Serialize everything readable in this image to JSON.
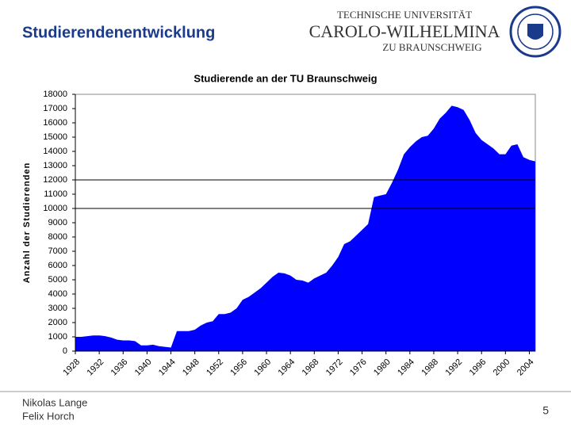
{
  "header": {
    "title": "Studierendenentwicklung",
    "logo": [
      "TECHNISCHE UNIVERSITÄT",
      "CAROLO-WILHELMINA",
      "ZU BRAUNSCHWEIG"
    ]
  },
  "chart_data": {
    "type": "area",
    "title": "Studierende an der TU Braunschweig",
    "y_label": "Anzahl der Studierenden",
    "color": "#0000ff",
    "x": [
      1928,
      1929,
      1930,
      1931,
      1932,
      1933,
      1934,
      1935,
      1936,
      1937,
      1938,
      1939,
      1940,
      1941,
      1942,
      1943,
      1944,
      1945,
      1946,
      1947,
      1948,
      1949,
      1950,
      1951,
      1952,
      1953,
      1954,
      1955,
      1956,
      1957,
      1958,
      1959,
      1960,
      1961,
      1962,
      1963,
      1964,
      1965,
      1966,
      1967,
      1968,
      1969,
      1970,
      1971,
      1972,
      1973,
      1974,
      1975,
      1976,
      1977,
      1978,
      1979,
      1980,
      1981,
      1982,
      1983,
      1984,
      1985,
      1986,
      1987,
      1988,
      1989,
      1990,
      1991,
      1992,
      1993,
      1994,
      1995,
      1996,
      1997,
      1998,
      1999,
      2000,
      2001,
      2002,
      2003,
      2004,
      2005
    ],
    "values": [
      1000,
      1000,
      1050,
      1100,
      1100,
      1050,
      950,
      800,
      750,
      750,
      700,
      400,
      400,
      450,
      350,
      300,
      250,
      1400,
      1400,
      1400,
      1500,
      1800,
      2000,
      2100,
      2600,
      2600,
      2700,
      3000,
      3600,
      3800,
      4100,
      4400,
      4800,
      5200,
      5500,
      5450,
      5300,
      5000,
      4950,
      4800,
      5100,
      5300,
      5500,
      6000,
      6600,
      7500,
      7700,
      8100,
      8500,
      8900,
      10800,
      10900,
      11000,
      11800,
      12700,
      13800,
      14300,
      14700,
      15000,
      15100,
      15600,
      16300,
      16700,
      17200,
      17100,
      16900,
      16200,
      15300,
      14800,
      14500,
      14200,
      13800,
      13800,
      14400,
      14500,
      13600,
      13400,
      13300
    ],
    "xlim": [
      1928,
      2005
    ],
    "xticks": [
      1928,
      1932,
      1936,
      1940,
      1944,
      1948,
      1952,
      1956,
      1960,
      1964,
      1968,
      1972,
      1976,
      1980,
      1984,
      1988,
      1992,
      1996,
      2000,
      2004
    ],
    "ylim": [
      0,
      18000
    ],
    "yticks": [
      0,
      1000,
      2000,
      3000,
      4000,
      5000,
      6000,
      7000,
      8000,
      9000,
      10000,
      11000,
      12000,
      13000,
      14000,
      15000,
      16000,
      17000,
      18000
    ],
    "reference_lines": [
      10000,
      12000
    ]
  },
  "footer": {
    "authors": [
      "Nikolas Lange",
      "Felix Horch"
    ],
    "page": "5"
  }
}
